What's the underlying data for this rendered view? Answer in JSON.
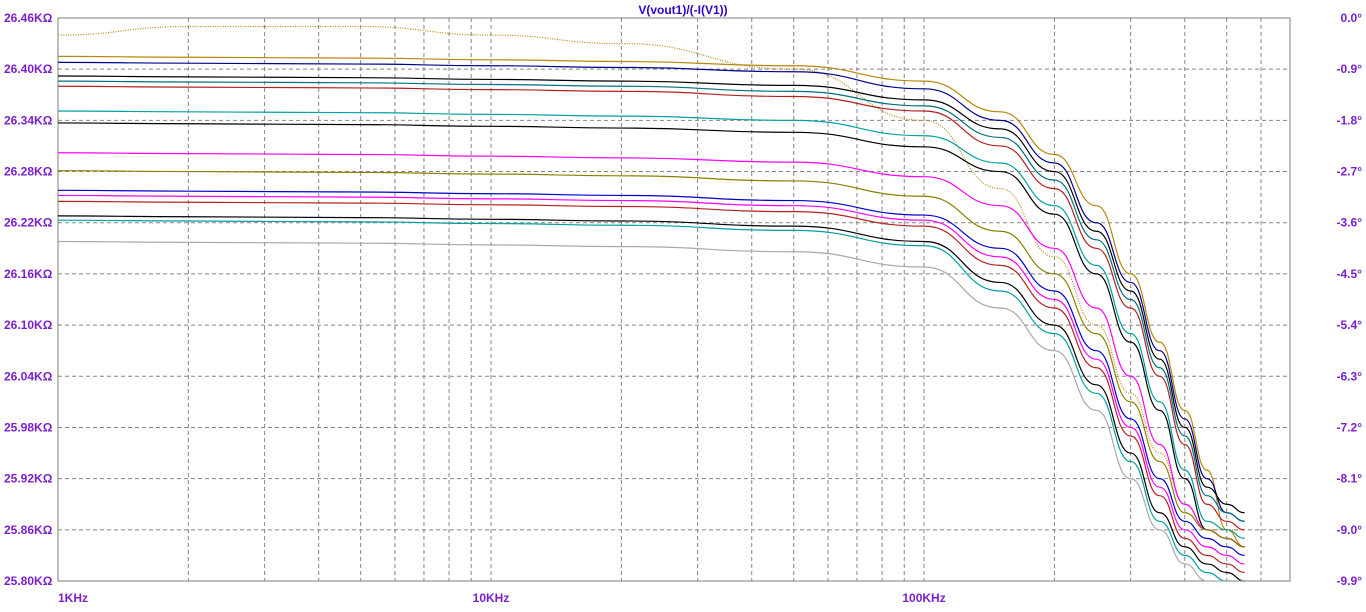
{
  "window": {
    "title": "V(vout1)/(-I(V1))"
  },
  "chart_data": {
    "type": "line",
    "title": "V(vout1)/(-I(V1))",
    "xscale": "log",
    "grid": true,
    "x": [
      1000,
      2000,
      5000,
      10000,
      20000,
      50000,
      100000,
      150000,
      200000,
      250000,
      300000,
      350000,
      400000,
      450000,
      500000,
      550000
    ],
    "xlim": [
      1000,
      700000
    ],
    "x_ticks": [
      {
        "value": 1000,
        "label": "1KHz"
      },
      {
        "value": 10000,
        "label": "10KHz"
      },
      {
        "value": 100000,
        "label": "100KHz"
      }
    ],
    "y_left": {
      "lim": [
        25.8,
        26.46
      ],
      "ticks": [
        "26.46KΩ",
        "26.40KΩ",
        "26.34KΩ",
        "26.28KΩ",
        "26.22KΩ",
        "26.16KΩ",
        "26.10KΩ",
        "26.04KΩ",
        "25.98KΩ",
        "25.92KΩ",
        "25.86KΩ",
        "25.80KΩ"
      ]
    },
    "y_right": {
      "lim": [
        -9.9,
        0.0
      ],
      "ticks": [
        "0.0°",
        "-0.9°",
        "-1.8°",
        "-2.7°",
        "-3.6°",
        "-4.5°",
        "-5.4°",
        "-6.3°",
        "-7.2°",
        "-8.1°",
        "-9.0°",
        "-9.9°"
      ]
    },
    "series": [
      {
        "color": "#b8860b",
        "style": "dotted",
        "values": [
          26.44,
          26.45,
          26.45,
          26.44,
          26.43,
          26.4,
          26.34,
          26.26,
          26.18,
          26.1,
          26.02,
          25.95,
          25.89,
          25.86,
          25.86,
          25.86
        ]
      },
      {
        "color": "#b8860b",
        "style": "solid",
        "values": [
          26.415,
          26.414,
          26.413,
          26.411,
          26.409,
          26.404,
          26.386,
          26.35,
          26.3,
          26.24,
          26.16,
          26.08,
          26.0,
          25.93,
          25.86,
          25.84
        ]
      },
      {
        "color": "#00008b",
        "style": "solid",
        "values": [
          26.408,
          26.407,
          26.406,
          26.404,
          26.402,
          26.397,
          26.377,
          26.34,
          26.29,
          26.22,
          26.15,
          26.07,
          25.99,
          25.92,
          25.88,
          25.87
        ]
      },
      {
        "color": "#000000",
        "style": "solid",
        "values": [
          26.392,
          26.391,
          26.39,
          26.388,
          26.386,
          26.381,
          26.364,
          26.33,
          26.28,
          26.21,
          26.14,
          26.06,
          25.98,
          25.91,
          25.89,
          25.88
        ]
      },
      {
        "color": "#006f7f",
        "style": "solid",
        "values": [
          26.386,
          26.385,
          26.384,
          26.382,
          26.38,
          26.374,
          26.357,
          26.32,
          26.27,
          26.2,
          26.13,
          26.05,
          25.97,
          25.9,
          25.88,
          25.87
        ]
      },
      {
        "color": "#b22222",
        "style": "solid",
        "values": [
          26.38,
          26.379,
          26.378,
          26.376,
          26.374,
          26.368,
          26.351,
          26.31,
          26.26,
          26.19,
          26.12,
          26.04,
          25.96,
          25.89,
          25.87,
          25.86
        ]
      },
      {
        "color": "#00a0a0",
        "style": "solid",
        "values": [
          26.351,
          26.35,
          26.349,
          26.347,
          26.345,
          26.34,
          26.322,
          26.29,
          26.24,
          26.17,
          26.09,
          26.01,
          25.93,
          25.87,
          25.86,
          25.85
        ]
      },
      {
        "color": "#000000",
        "style": "solid",
        "values": [
          26.337,
          26.336,
          26.335,
          26.333,
          26.331,
          26.326,
          26.309,
          26.28,
          26.23,
          26.16,
          26.08,
          26.0,
          25.92,
          25.86,
          25.85,
          25.84
        ]
      },
      {
        "color": "#ff00ff",
        "style": "solid",
        "values": [
          26.302,
          26.301,
          26.3,
          26.298,
          26.296,
          26.291,
          26.274,
          26.24,
          26.19,
          26.12,
          26.04,
          25.96,
          25.89,
          25.86,
          25.85,
          25.84
        ]
      },
      {
        "color": "#8b8000",
        "style": "solid",
        "values": [
          26.281,
          26.28,
          26.279,
          26.277,
          26.275,
          26.269,
          26.251,
          26.21,
          26.16,
          26.09,
          26.01,
          25.94,
          25.88,
          25.86,
          25.85,
          25.84
        ]
      },
      {
        "color": "#0000cd",
        "style": "solid",
        "values": [
          26.258,
          26.257,
          26.256,
          26.254,
          26.252,
          26.246,
          26.229,
          26.19,
          26.14,
          26.07,
          25.99,
          25.92,
          25.87,
          25.85,
          25.84,
          25.83
        ]
      },
      {
        "color": "#ff00ff",
        "style": "solid",
        "values": [
          26.252,
          26.251,
          26.25,
          26.248,
          26.246,
          26.24,
          26.223,
          26.18,
          26.13,
          26.06,
          25.98,
          25.91,
          25.86,
          25.84,
          25.83,
          25.82
        ]
      },
      {
        "color": "#b22222",
        "style": "solid",
        "values": [
          26.245,
          26.244,
          26.243,
          26.241,
          26.239,
          26.233,
          26.216,
          26.17,
          26.12,
          26.05,
          25.97,
          25.9,
          25.85,
          25.83,
          25.82,
          25.81
        ]
      },
      {
        "color": "#000000",
        "style": "solid",
        "values": [
          26.228,
          26.227,
          26.226,
          26.224,
          26.222,
          26.216,
          26.198,
          26.15,
          26.1,
          26.03,
          25.95,
          25.88,
          25.84,
          25.82,
          25.81,
          25.8
        ]
      },
      {
        "color": "#00a0a0",
        "style": "solid",
        "values": [
          26.223,
          26.222,
          26.221,
          26.219,
          26.217,
          26.211,
          26.193,
          26.14,
          26.09,
          26.02,
          25.94,
          25.87,
          25.83,
          25.81,
          25.8,
          25.8
        ]
      },
      {
        "color": "#a9a9a9",
        "style": "solid",
        "values": [
          26.198,
          26.197,
          26.196,
          26.194,
          26.192,
          26.186,
          26.168,
          26.12,
          26.07,
          26.0,
          25.92,
          25.86,
          25.82,
          25.8,
          25.8,
          25.8
        ]
      }
    ]
  },
  "colors": {
    "tick_label": "#7a1fd0",
    "title": "#3300cc",
    "grid": "#7f7f7f",
    "frame": "#808080"
  }
}
